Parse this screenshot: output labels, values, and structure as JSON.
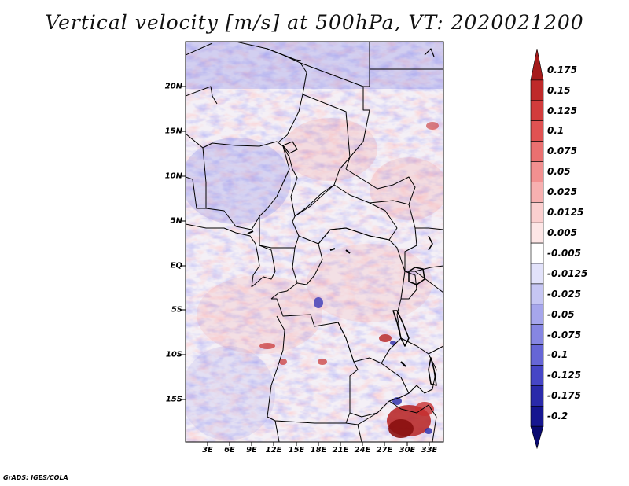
{
  "title": "Vertical velocity [m/s] at 500hPa, VT: 2020021200",
  "footer": "GrADS: IGES/COLA",
  "map": {
    "lat_labels": [
      "20N",
      "15N",
      "10N",
      "5N",
      "EQ",
      "5S",
      "10S",
      "15S"
    ],
    "lon_labels": [
      "3E",
      "6E",
      "9E",
      "12E",
      "15E",
      "18E",
      "21E",
      "24E",
      "27E",
      "30E",
      "33E"
    ],
    "lat_range": [
      -19.6,
      24.7
    ],
    "lon_range": [
      0.0,
      34.8
    ]
  },
  "colorbar": {
    "labels": [
      "0.175",
      "0.15",
      "0.125",
      "0.1",
      "0.075",
      "0.05",
      "0.025",
      "0.0125",
      "0.005",
      "-0.005",
      "-0.0125",
      "-0.025",
      "-0.05",
      "-0.075",
      "-0.1",
      "-0.125",
      "-0.175",
      "-0.2"
    ],
    "colors": [
      "#a51a1a",
      "#bf2a2a",
      "#d23c3c",
      "#e05252",
      "#ea7070",
      "#f29090",
      "#f7b0b0",
      "#fbcfcf",
      "#fde6e6",
      "#ffffff",
      "#e2e2fa",
      "#c6c6f3",
      "#a6a6ec",
      "#8686e2",
      "#6666d6",
      "#4646c6",
      "#2a2aaa",
      "#161690",
      "#0a0a70"
    ]
  }
}
